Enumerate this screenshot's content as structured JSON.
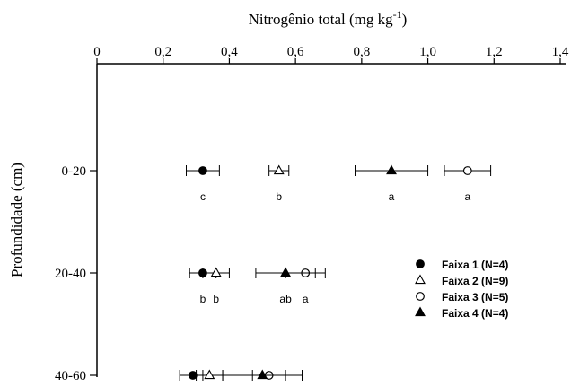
{
  "chart_data": {
    "type": "scatter",
    "title": "",
    "xlabel": "Nitrogênio total (mg kg",
    "xlabel_superscript": "-1",
    "xlabel_close": ")",
    "ylabel": "Profundidade (cm)",
    "xlim": [
      0,
      1.4
    ],
    "x_ticks": [
      "0",
      "0,2",
      "0,4",
      "0,6",
      "0,8",
      "1,0",
      "1,2",
      "1,4"
    ],
    "categories": [
      "0-20",
      "20-40",
      "40-60"
    ],
    "legend_position": "right",
    "grid": false,
    "series": [
      {
        "name": "Faixa 1 (N=4)",
        "marker": "filled-circle",
        "values": [
          0.32,
          0.32,
          0.29
        ],
        "error_low": [
          0.27,
          0.28,
          0.25
        ],
        "error_high": [
          0.37,
          0.36,
          0.32
        ],
        "letters": [
          "c",
          "b",
          ""
        ]
      },
      {
        "name": "Faixa 2 (N=9)",
        "marker": "open-triangle",
        "values": [
          0.55,
          0.36,
          0.34
        ],
        "error_low": [
          0.52,
          0.32,
          0.3
        ],
        "error_high": [
          0.58,
          0.4,
          0.38
        ],
        "letters": [
          "b",
          "b",
          ""
        ]
      },
      {
        "name": "Faixa 3 (N=5)",
        "marker": "open-circle",
        "values": [
          1.12,
          0.63,
          0.52
        ],
        "error_low": [
          1.05,
          0.57,
          0.47
        ],
        "error_high": [
          1.19,
          0.69,
          0.57
        ],
        "letters": [
          "a",
          "a",
          ""
        ]
      },
      {
        "name": "Faixa 4 (N=4)",
        "marker": "filled-triangle",
        "values": [
          0.89,
          0.57,
          0.5
        ],
        "error_low": [
          0.78,
          0.48,
          0.38
        ],
        "error_high": [
          1.0,
          0.66,
          0.62
        ],
        "letters": [
          "a",
          "ab",
          ""
        ]
      }
    ]
  }
}
